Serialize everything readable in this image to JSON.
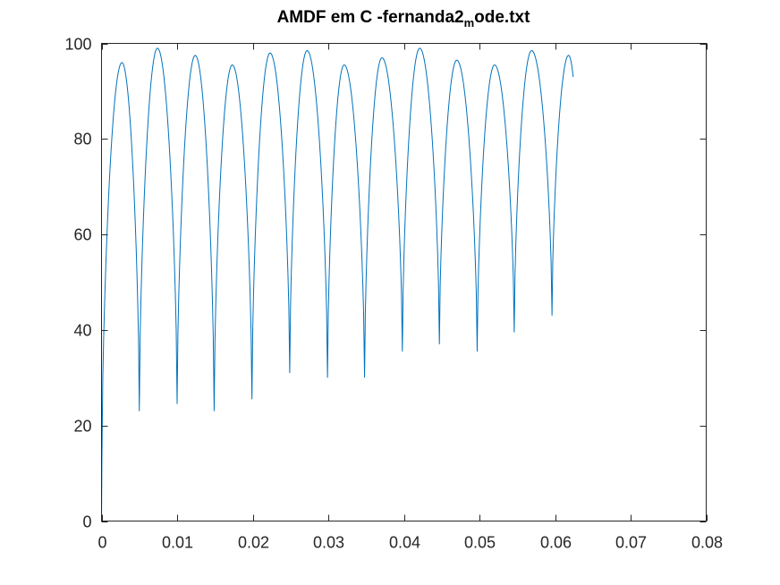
{
  "chart_data": {
    "type": "line",
    "title": {
      "main": "AMDF em C -fernanda2",
      "subscript": "m",
      "after": "ode.txt"
    },
    "xlabel": "",
    "ylabel": "",
    "xlim": [
      0,
      0.08
    ],
    "ylim": [
      0,
      100
    ],
    "x_ticks": [
      0,
      0.01,
      0.02,
      0.03,
      0.04,
      0.05,
      0.06,
      0.07,
      0.08
    ],
    "x_tick_labels": [
      "0",
      "0.01",
      "0.02",
      "0.03",
      "0.04",
      "0.05",
      "0.06",
      "0.07",
      "0.08"
    ],
    "y_ticks": [
      0,
      20,
      40,
      60,
      80,
      100
    ],
    "y_tick_labels": [
      "0",
      "20",
      "40",
      "60",
      "80",
      "100"
    ],
    "grid": false,
    "box": true,
    "series": [
      {
        "color": "#0072bd",
        "x_end": 0.0624,
        "end_y": 93,
        "minima": [
          {
            "x": 0.0,
            "y": 0
          },
          {
            "x": 5e-05,
            "y": 13
          },
          {
            "x": 0.005,
            "y": 23
          },
          {
            "x": 0.01,
            "y": 24.5
          },
          {
            "x": 0.0149,
            "y": 23
          },
          {
            "x": 0.0199,
            "y": 25.5
          },
          {
            "x": 0.0249,
            "y": 31
          },
          {
            "x": 0.0299,
            "y": 30
          },
          {
            "x": 0.0348,
            "y": 30
          },
          {
            "x": 0.0398,
            "y": 35.5
          },
          {
            "x": 0.0447,
            "y": 37
          },
          {
            "x": 0.0497,
            "y": 35.5
          },
          {
            "x": 0.0546,
            "y": 39.5
          },
          {
            "x": 0.0596,
            "y": 43
          }
        ],
        "maxima": [
          {
            "x": 0.0027,
            "y": 96
          },
          {
            "x": 0.0074,
            "y": 99
          },
          {
            "x": 0.0124,
            "y": 97.5
          },
          {
            "x": 0.0173,
            "y": 95.5
          },
          {
            "x": 0.0223,
            "y": 98
          },
          {
            "x": 0.0272,
            "y": 98.5
          },
          {
            "x": 0.0321,
            "y": 95.5
          },
          {
            "x": 0.0371,
            "y": 97
          },
          {
            "x": 0.0421,
            "y": 99
          },
          {
            "x": 0.047,
            "y": 96.5
          },
          {
            "x": 0.052,
            "y": 95.5
          },
          {
            "x": 0.0569,
            "y": 98.5
          },
          {
            "x": 0.0618,
            "y": 97.5
          }
        ]
      }
    ]
  }
}
